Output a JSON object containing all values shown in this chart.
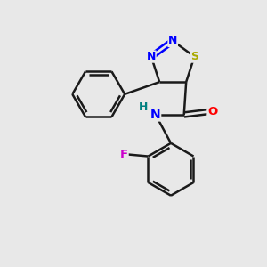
{
  "background_color": "#e8e8e8",
  "bond_color": "#1a1a1a",
  "N_color": "#0000ff",
  "S_color": "#aaaa00",
  "O_color": "#ff0000",
  "F_color": "#cc00cc",
  "H_color": "#008080",
  "line_width": 1.8,
  "dbo": 0.035,
  "fig_size": [
    3.0,
    3.0
  ],
  "dpi": 100,
  "xlim": [
    0.0,
    6.0
  ],
  "ylim": [
    0.0,
    6.0
  ]
}
